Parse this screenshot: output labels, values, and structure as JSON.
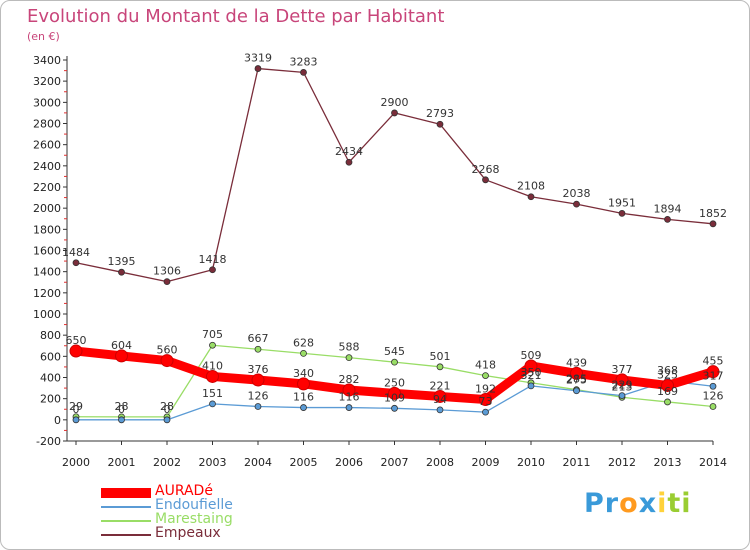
{
  "chart_data": {
    "type": "line",
    "title": "Evolution du Montant de la Dette par Habitant",
    "subtitle": "(en €)",
    "x": [
      "2000",
      "2001",
      "2002",
      "2003",
      "2004",
      "2005",
      "2006",
      "2007",
      "2008",
      "2009",
      "2010",
      "2011",
      "2012",
      "2013",
      "2014"
    ],
    "ylim": [
      -200,
      3400
    ],
    "yticks": [
      -200,
      0,
      200,
      400,
      600,
      800,
      1000,
      1200,
      1400,
      1600,
      1800,
      2000,
      2200,
      2400,
      2600,
      2800,
      3000,
      3200,
      3400
    ],
    "grid": false,
    "legend_position": "bottom-left",
    "series": [
      {
        "name": "AURADé",
        "color": "#ff0000",
        "values": [
          650,
          604,
          560,
          410,
          376,
          340,
          282,
          250,
          221,
          192,
          509,
          439,
          377,
          325,
          455
        ],
        "labels": [
          "650",
          "604",
          "560",
          "410",
          "376",
          "340",
          "282",
          "250",
          "221",
          "192",
          "509",
          "439",
          "377",
          "325",
          "455"
        ]
      },
      {
        "name": "Endoufielle",
        "color": "#5b9bd5",
        "values": [
          0,
          0,
          0,
          151,
          126,
          116,
          116,
          109,
          94,
          73,
          321,
          275,
          229,
          368,
          317
        ],
        "labels": [
          "0",
          "0",
          "0",
          "151",
          "126",
          "116",
          "116",
          "109",
          "94",
          "73",
          "321",
          "275",
          "229",
          "368",
          "317"
        ]
      },
      {
        "name": "Marestaing",
        "color": "#99dd66",
        "values": [
          29,
          28,
          28,
          705,
          667,
          628,
          588,
          545,
          501,
          418,
          350,
          285,
          213,
          169,
          126
        ],
        "labels": [
          "29",
          "28",
          "28",
          "705",
          "667",
          "628",
          "588",
          "545",
          "501",
          "418",
          "350",
          "285",
          "213",
          "169",
          "126"
        ]
      },
      {
        "name": "Empeaux",
        "color": "#7a2d3a",
        "values": [
          1484,
          1395,
          1306,
          1418,
          3319,
          3283,
          2434,
          2900,
          2793,
          2268,
          2108,
          2038,
          1951,
          1894,
          1852
        ],
        "labels": [
          "1484",
          "1395",
          "1306",
          "1418",
          "3319",
          "3283",
          "2434",
          "2900",
          "2793",
          "2268",
          "2108",
          "2038",
          "1951",
          "1894",
          "1852"
        ]
      }
    ]
  },
  "logo": {
    "letters": [
      "P",
      "r",
      "o",
      "x",
      "i",
      "t",
      "i"
    ],
    "colors": [
      "#3a9ad9",
      "#3a9ad9",
      "#ff9a1f",
      "#3a9ad9",
      "#ffd23a",
      "#9acd32",
      "#9acd32"
    ]
  }
}
